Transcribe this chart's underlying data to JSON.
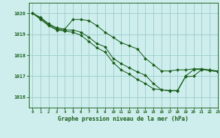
{
  "background_color": "#ceeeed",
  "grid_color": "#9ecece",
  "line_color": "#1a5e1a",
  "title": "Graphe pression niveau de la mer (hPa)",
  "xlim": [
    -0.5,
    23
  ],
  "ylim": [
    1015.5,
    1020.5
  ],
  "yticks": [
    1016,
    1017,
    1018,
    1019,
    1020
  ],
  "xticks": [
    0,
    1,
    2,
    3,
    4,
    5,
    6,
    7,
    8,
    9,
    10,
    11,
    12,
    13,
    14,
    15,
    16,
    17,
    18,
    19,
    20,
    21,
    22,
    23
  ],
  "series": [
    [
      1020.0,
      1019.8,
      1019.5,
      1019.3,
      1019.25,
      1019.7,
      1019.7,
      1019.65,
      1019.4,
      1019.1,
      1018.85,
      1018.6,
      1018.45,
      1018.3,
      1017.85,
      1017.55,
      1017.25,
      1017.25,
      1017.3,
      1017.3,
      1017.35,
      1017.35,
      1017.3,
      1017.25
    ],
    [
      1020.0,
      1019.75,
      1019.45,
      1019.25,
      1019.2,
      1019.2,
      1019.1,
      1018.85,
      1018.55,
      1018.4,
      1017.85,
      1017.6,
      1017.4,
      1017.2,
      1017.05,
      1016.65,
      1016.35,
      1016.32,
      1016.32,
      1017.0,
      1017.32,
      1017.32,
      1017.27,
      1017.22
    ],
    [
      1020.0,
      1019.7,
      1019.4,
      1019.2,
      1019.15,
      1019.1,
      1018.95,
      1018.65,
      1018.35,
      1018.15,
      1017.65,
      1017.3,
      1017.1,
      1016.85,
      1016.65,
      1016.4,
      1016.35,
      1016.3,
      1016.3,
      1016.98,
      1017.0,
      1017.32,
      1017.27,
      1017.22
    ]
  ]
}
